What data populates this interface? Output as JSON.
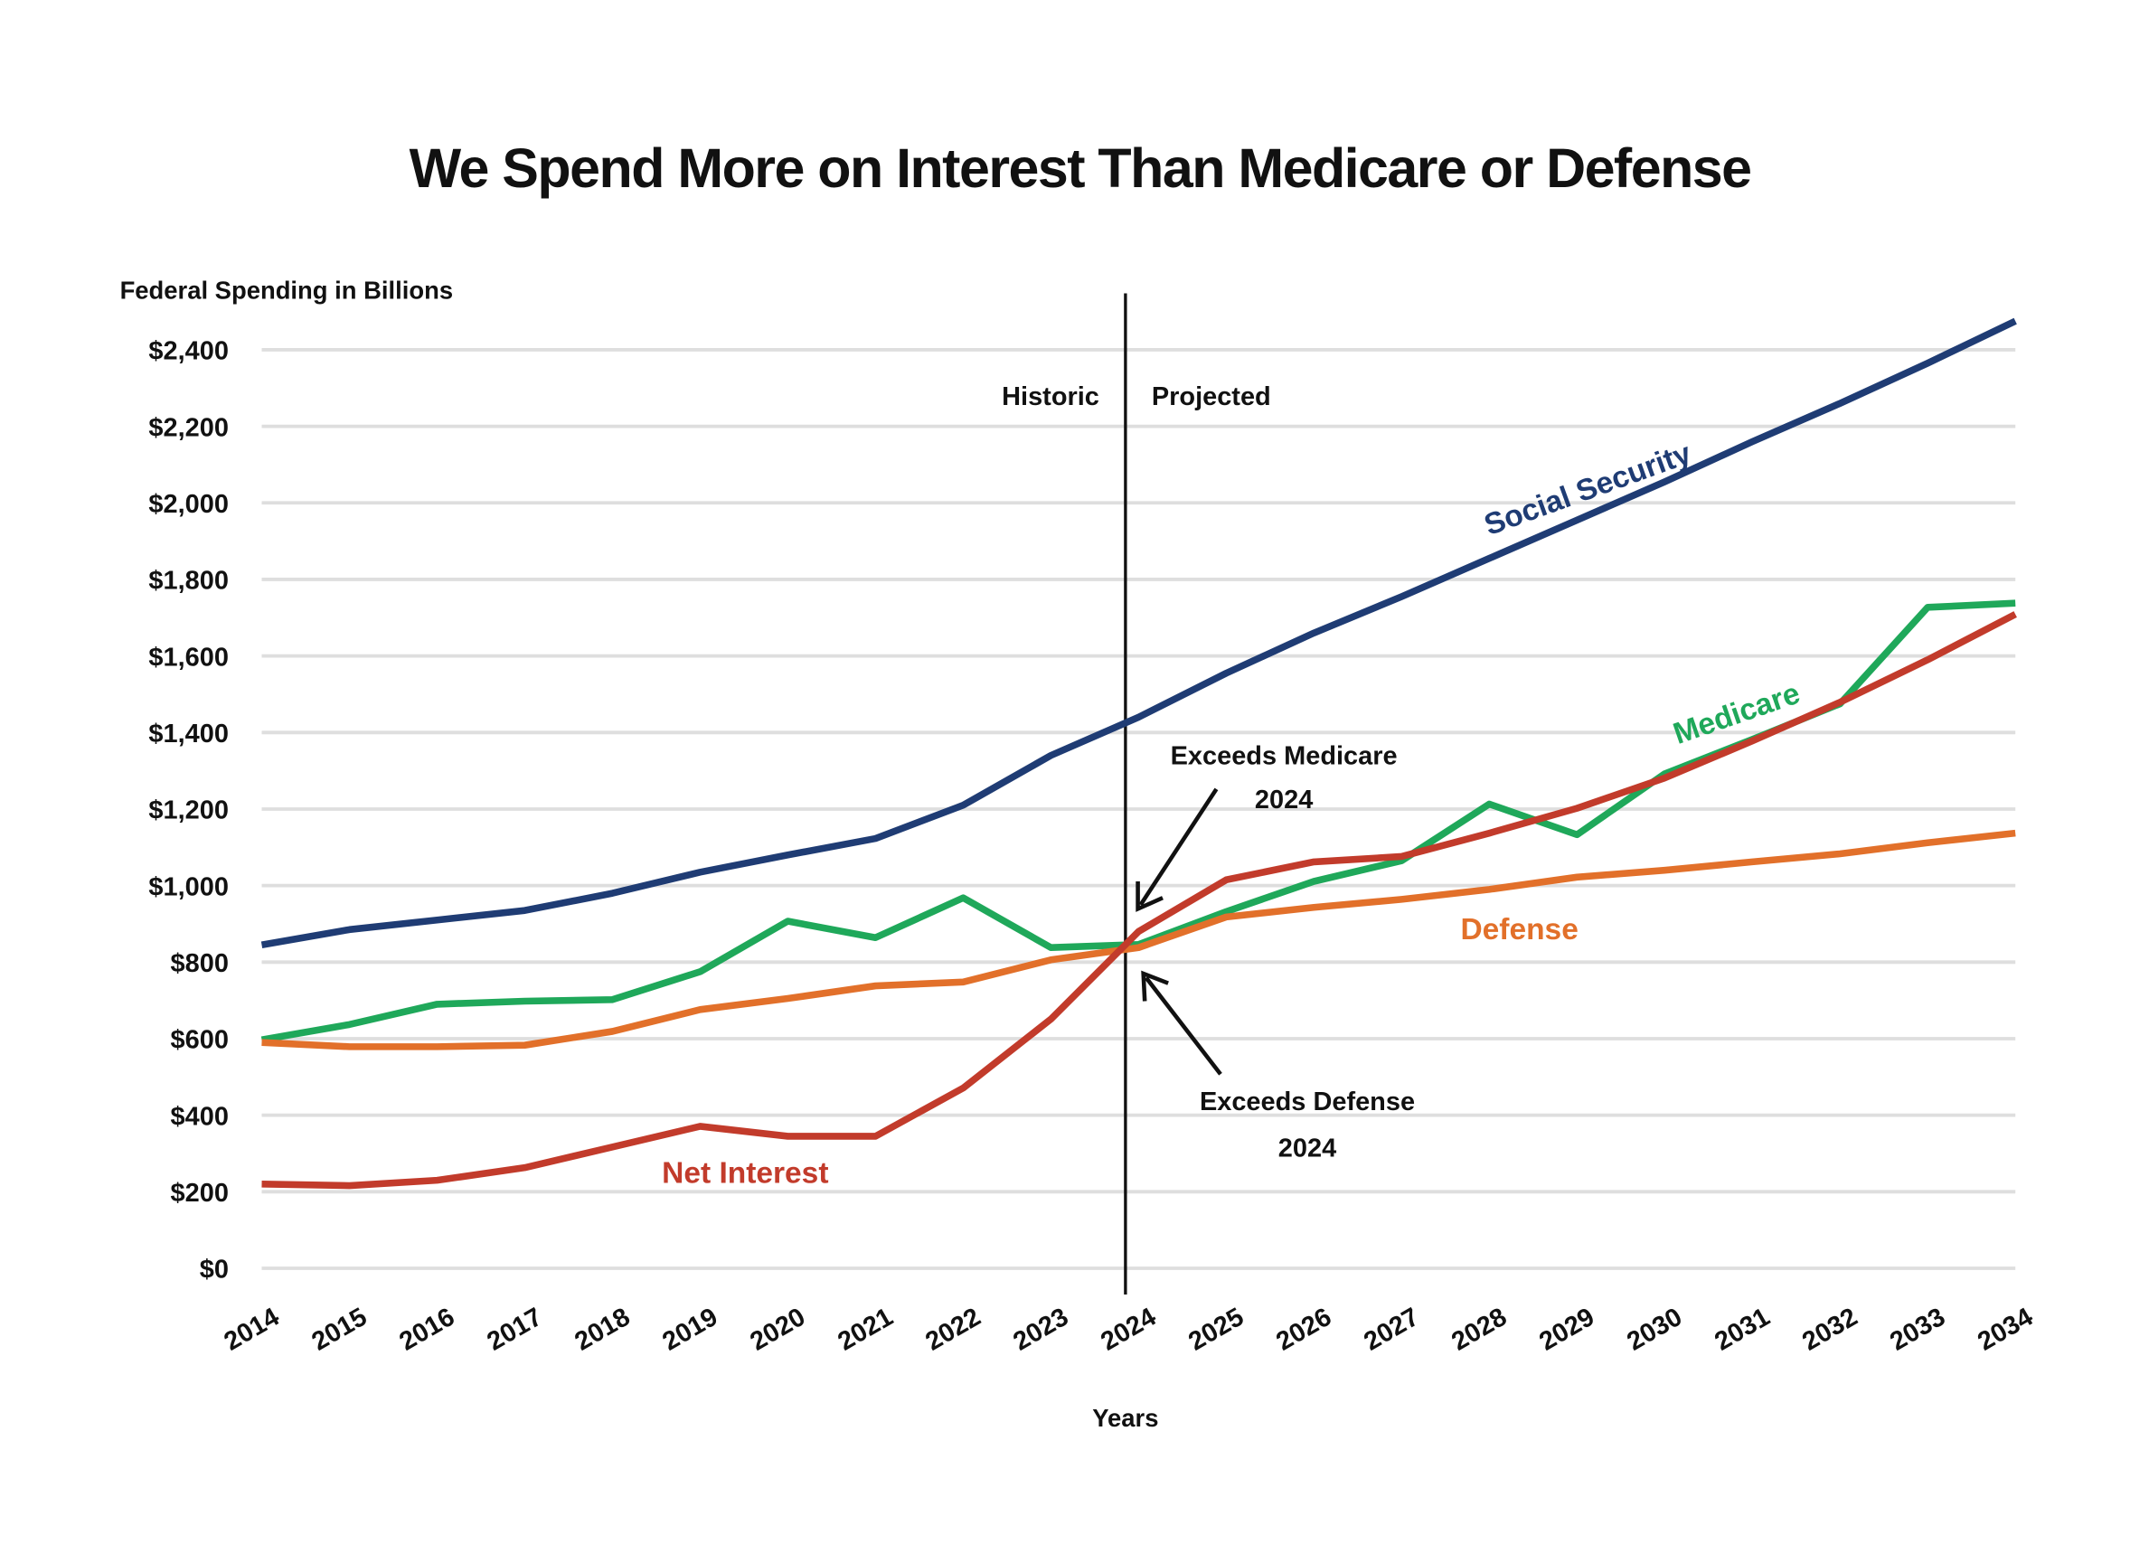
{
  "chart_data": {
    "type": "line",
    "title": "We Spend More on Interest Than Medicare or Defense",
    "ylabel": "Federal Spending in Billions",
    "xlabel": "Years",
    "ylim": [
      0,
      2400
    ],
    "yticks": [
      0,
      200,
      400,
      600,
      800,
      1000,
      1200,
      1400,
      1600,
      1800,
      2000,
      2200,
      2400
    ],
    "ytick_labels": [
      "$0",
      "$200",
      "$400",
      "$600",
      "$800",
      "$1,000",
      "$1,200",
      "$1,400",
      "$1,600",
      "$1,800",
      "$2,000",
      "$2,200",
      "$2,400"
    ],
    "x": [
      2014,
      2015,
      2016,
      2017,
      2018,
      2019,
      2020,
      2021,
      2022,
      2023,
      2024,
      2025,
      2026,
      2027,
      2028,
      2029,
      2030,
      2031,
      2032,
      2033,
      2034
    ],
    "grid": "horizontal",
    "divider_year": 2024,
    "region_labels": {
      "left": "Historic",
      "right": "Projected"
    },
    "series": [
      {
        "name": "Social Security",
        "color": "#1f3c74",
        "values": [
          845,
          885,
          910,
          935,
          980,
          1035,
          1080,
          1123,
          1210,
          1340,
          1440,
          1555,
          1660,
          1755,
          1855,
          1955,
          2055,
          2160,
          2260,
          2365,
          2475
        ]
      },
      {
        "name": "Medicare",
        "color": "#1fa85a",
        "values": [
          597,
          637,
          690,
          698,
          702,
          775,
          907,
          864,
          968,
          838,
          846,
          932,
          1011,
          1065,
          1213,
          1133,
          1292,
          1382,
          1475,
          1727,
          1738
        ]
      },
      {
        "name": "Defense",
        "color": "#e2702a",
        "values": [
          590,
          579,
          579,
          583,
          619,
          676,
          705,
          738,
          748,
          806,
          838,
          918,
          943,
          964,
          990,
          1022,
          1040,
          1062,
          1083,
          1112,
          1137
        ]
      },
      {
        "name": "Net Interest",
        "color": "#c23b2b",
        "values": [
          220,
          216,
          230,
          263,
          317,
          371,
          345,
          345,
          471,
          651,
          880,
          1015,
          1062,
          1076,
          1137,
          1202,
          1281,
          1378,
          1479,
          1590,
          1709
        ]
      }
    ],
    "annotations": [
      {
        "text": "Exceeds Medicare",
        "year_text": "2024"
      },
      {
        "text": "Exceeds Defense",
        "year_text": "2024"
      }
    ]
  }
}
